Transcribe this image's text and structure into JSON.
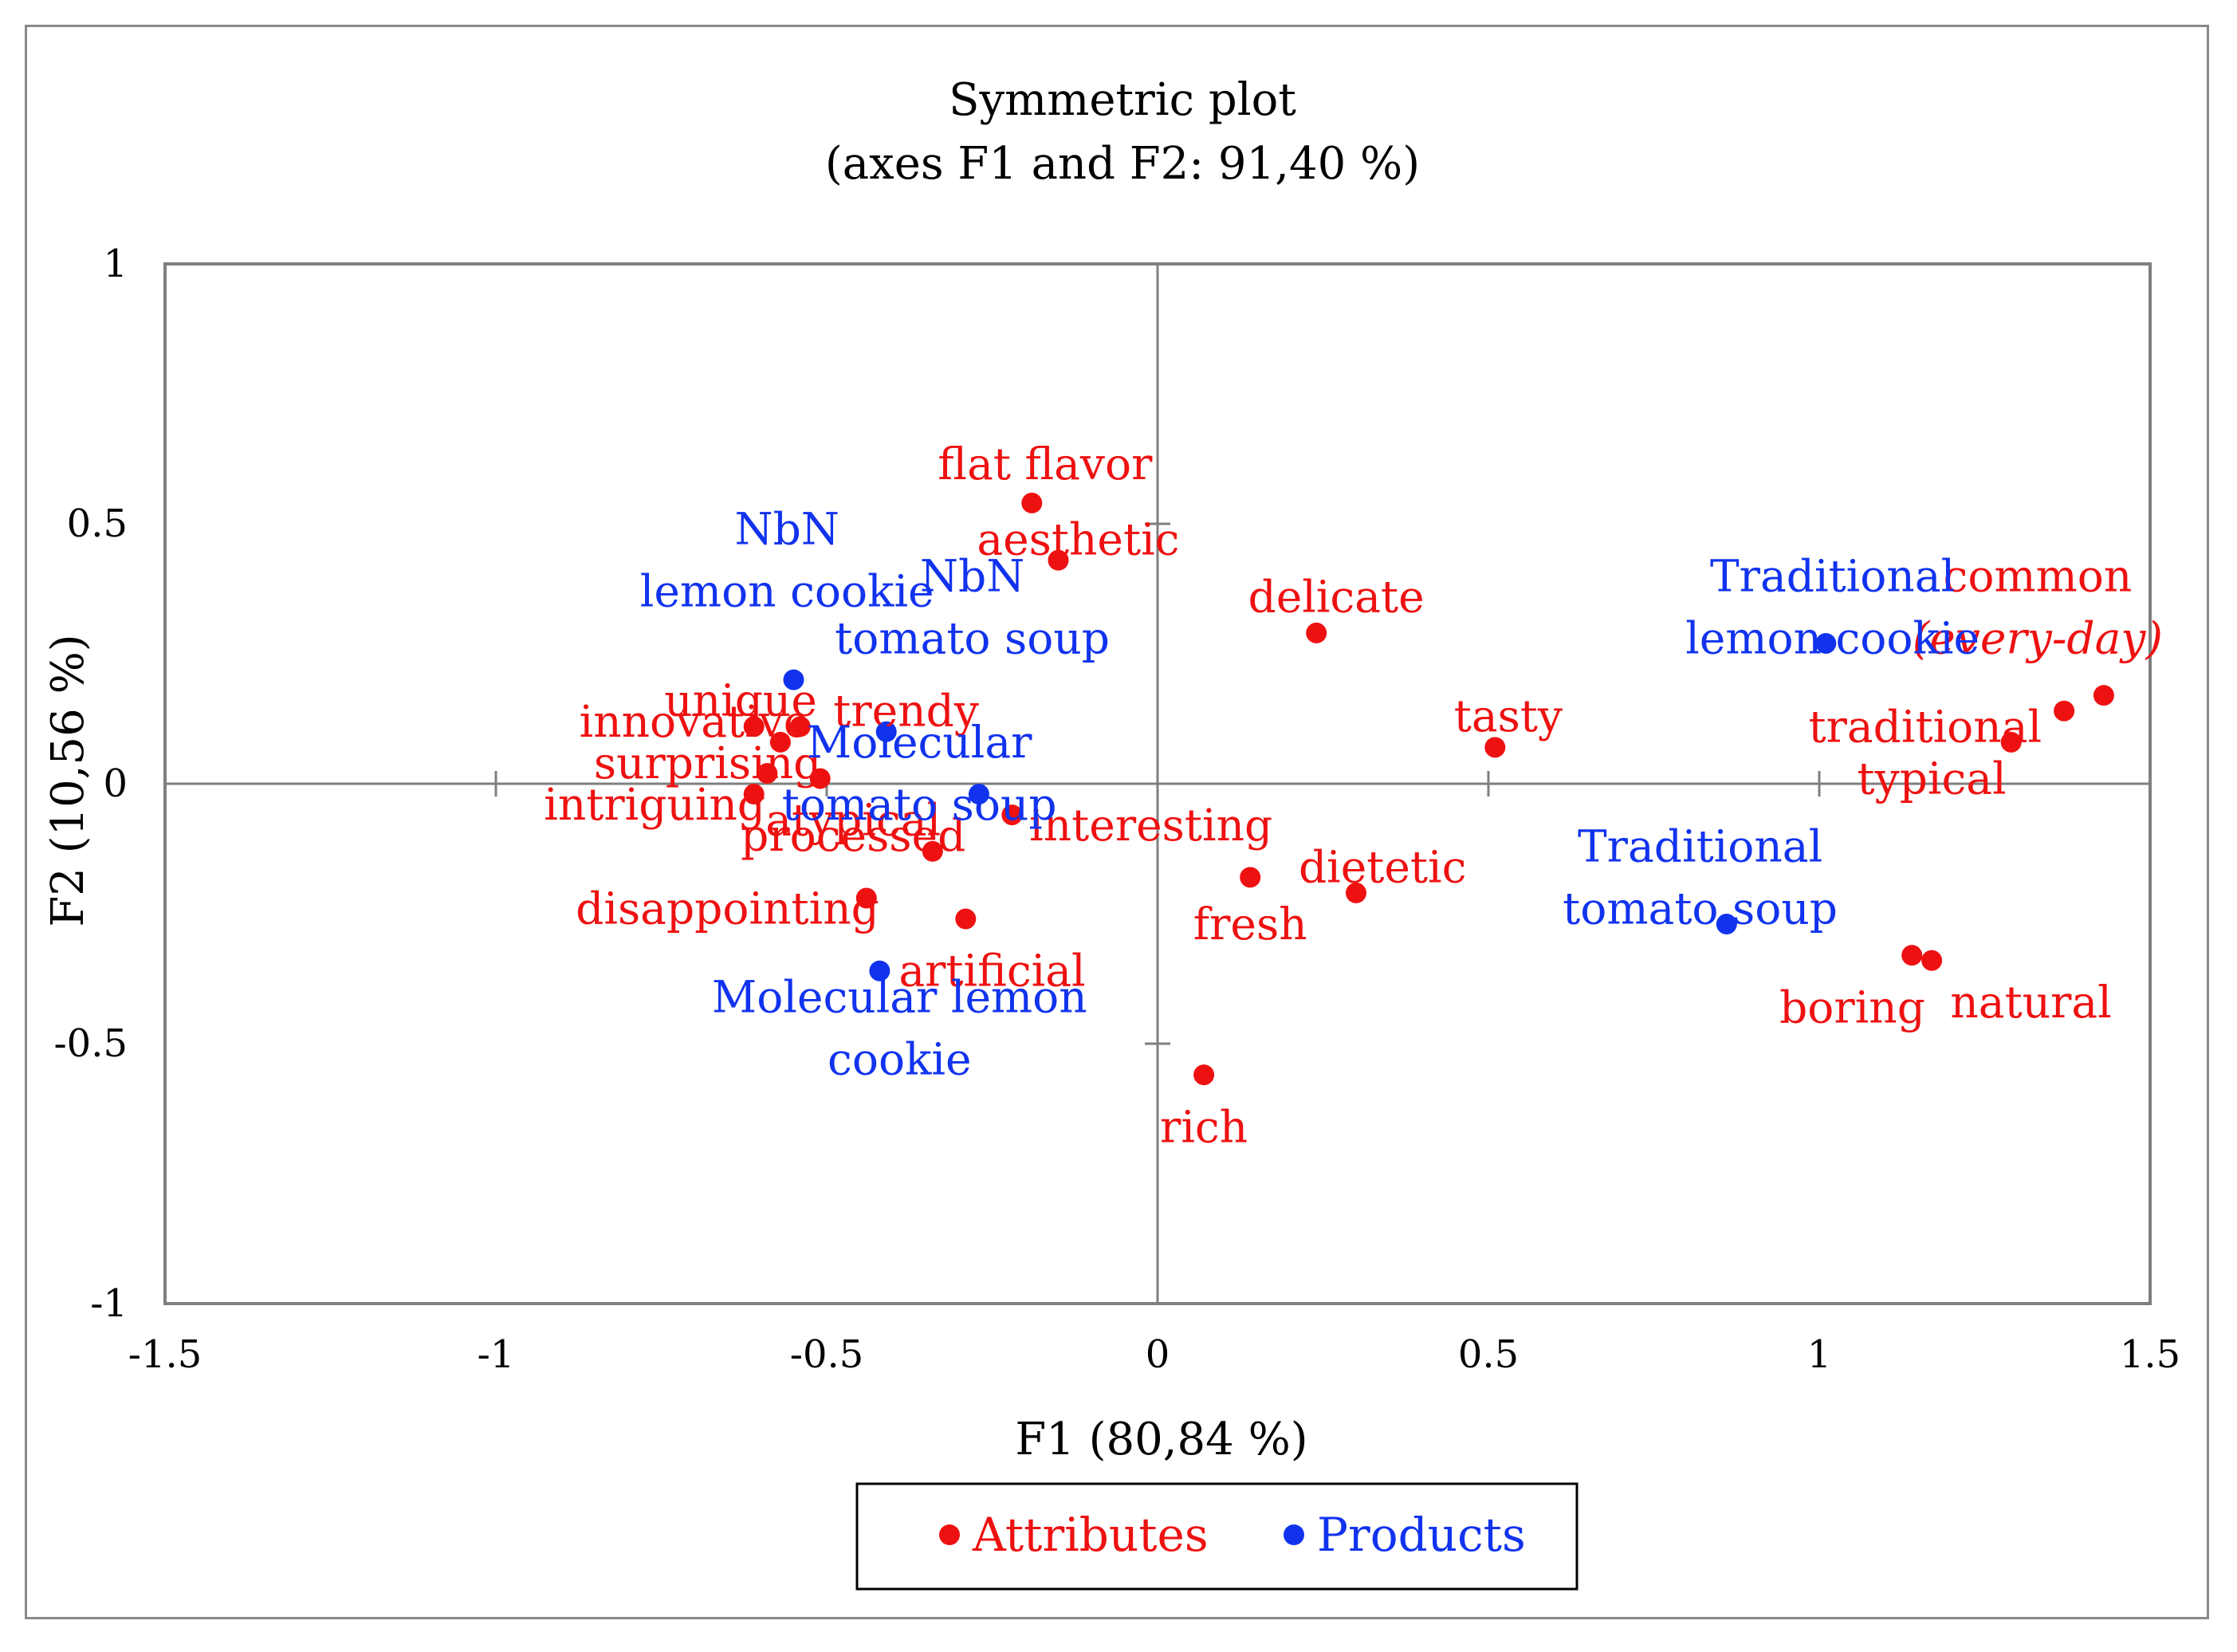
{
  "chart_data": {
    "type": "scatter",
    "title": "Symmetric plot",
    "subtitle": "(axes F1 and F2: 91,40 %)",
    "xlabel": "F1 (80,84 %)",
    "ylabel": "F2 (10,56 %)",
    "xlim": [
      -1.5,
      1.5
    ],
    "ylim": [
      -1,
      1
    ],
    "xticks": [
      -1.5,
      -1,
      -0.5,
      0,
      0.5,
      1,
      1.5
    ],
    "yticks": [
      -1,
      -0.5,
      0,
      0.5,
      1
    ],
    "xtick_labels": [
      "-1.5",
      "-1",
      "-0.5",
      "0",
      "0.5",
      "1",
      "1.5"
    ],
    "ytick_labels": [
      "-1",
      "-0.5",
      "0",
      "0.5",
      "1"
    ],
    "legend": {
      "position": "bottom-center",
      "entries": [
        "Attributes",
        "Products"
      ]
    },
    "colors": {
      "Attributes": "#ee1111",
      "Products": "#1133ee"
    },
    "series": [
      {
        "name": "Attributes",
        "points": [
          {
            "label": [
              "flat flavor"
            ],
            "x": -0.19,
            "y": 0.54,
            "label_dx": 0.02,
            "label_dy": 0.075,
            "anchor": "middle"
          },
          {
            "label": [
              "aesthetic"
            ],
            "x": -0.15,
            "y": 0.43,
            "label_dx": 0.03,
            "label_dy": 0.04,
            "anchor": "middle"
          },
          {
            "label": [
              "delicate"
            ],
            "x": 0.24,
            "y": 0.29,
            "label_dx": 0.03,
            "label_dy": 0.07,
            "anchor": "middle"
          },
          {
            "label": [
              "tasty"
            ],
            "x": 0.51,
            "y": 0.07,
            "label_dx": 0.02,
            "label_dy": 0.06,
            "anchor": "middle"
          },
          {
            "label": [
              "common",
              "(every-day)"
            ],
            "x": 1.43,
            "y": 0.17,
            "label_dx": -0.1,
            "label_dy": 0.17,
            "anchor": "middle",
            "italic_line": 1
          },
          {
            "label": [
              "traditional"
            ],
            "x": 1.37,
            "y": 0.14,
            "label_dx": -0.21,
            "label_dy": -0.03,
            "anchor": "middle"
          },
          {
            "label": [
              "typical"
            ],
            "x": 1.29,
            "y": 0.08,
            "label_dx": -0.12,
            "label_dy": -0.07,
            "anchor": "middle"
          },
          {
            "label": [
              "unique"
            ],
            "x": -0.61,
            "y": 0.11,
            "label_dx": -0.02,
            "label_dy": 0.05,
            "anchor": "middle"
          },
          {
            "label": [
              "trendy"
            ],
            "x": -0.54,
            "y": 0.11,
            "label_dx": 0.16,
            "label_dy": 0.03,
            "anchor": "middle"
          },
          {
            "label": [
              "innovative"
            ],
            "x": -0.57,
            "y": 0.08,
            "label_dx": -0.13,
            "label_dy": 0.04,
            "anchor": "middle"
          },
          {
            "label": [
              "surprising"
            ],
            "x": -0.59,
            "y": 0.02,
            "label_dx": -0.09,
            "label_dy": 0.02,
            "anchor": "middle"
          },
          {
            "label": [
              "atypical"
            ],
            "x": -0.51,
            "y": 0.01,
            "label_dx": 0.05,
            "label_dy": -0.08,
            "anchor": "middle"
          },
          {
            "label": [
              "intriguing"
            ],
            "x": -0.61,
            "y": -0.02,
            "label_dx": -0.15,
            "label_dy": -0.02,
            "anchor": "middle"
          },
          {
            "label": [
              "interesting"
            ],
            "x": -0.22,
            "y": -0.06,
            "label_dx": 0.21,
            "label_dy": -0.02,
            "anchor": "middle"
          },
          {
            "label": [
              "processed"
            ],
            "x": -0.34,
            "y": -0.13,
            "label_dx": -0.12,
            "label_dy": 0.03,
            "anchor": "middle"
          },
          {
            "label": [
              "disappointing"
            ],
            "x": -0.44,
            "y": -0.22,
            "label_dx": -0.21,
            "label_dy": -0.02,
            "anchor": "middle"
          },
          {
            "label": [
              "artificial"
            ],
            "x": -0.29,
            "y": -0.26,
            "label_dx": 0.04,
            "label_dy": -0.1,
            "anchor": "middle"
          },
          {
            "label": [
              "fresh"
            ],
            "x": 0.14,
            "y": -0.18,
            "label_dx": 0.0,
            "label_dy": -0.09,
            "anchor": "middle"
          },
          {
            "label": [
              "dietetic"
            ],
            "x": 0.3,
            "y": -0.21,
            "label_dx": 0.04,
            "label_dy": 0.05,
            "anchor": "middle"
          },
          {
            "label": [
              "rich"
            ],
            "x": 0.07,
            "y": -0.56,
            "label_dx": 0.0,
            "label_dy": -0.1,
            "anchor": "middle"
          },
          {
            "label": [
              "boring"
            ],
            "x": 1.14,
            "y": -0.33,
            "label_dx": -0.09,
            "label_dy": -0.1,
            "anchor": "middle"
          },
          {
            "label": [
              "natural"
            ],
            "x": 1.17,
            "y": -0.34,
            "label_dx": 0.15,
            "label_dy": -0.08,
            "anchor": "middle"
          }
        ]
      },
      {
        "name": "Products",
        "points": [
          {
            "label": [
              "NbN",
              "lemon cookie"
            ],
            "x": -0.55,
            "y": 0.2,
            "label_dx": -0.01,
            "label_dy": 0.23,
            "anchor": "middle"
          },
          {
            "label": [
              "NbN",
              "tomato soup"
            ],
            "x": -0.41,
            "y": 0.1,
            "label_dx": 0.13,
            "label_dy": 0.24,
            "anchor": "middle"
          },
          {
            "label": [
              "Molecular",
              "tomato soup"
            ],
            "x": -0.27,
            "y": -0.02,
            "label_dx": -0.09,
            "label_dy": 0.04,
            "anchor": "middle"
          },
          {
            "label": [
              "Molecular lemon",
              "cookie"
            ],
            "x": -0.42,
            "y": -0.36,
            "label_dx": 0.03,
            "label_dy": -0.11,
            "anchor": "middle"
          },
          {
            "label": [
              "Traditional",
              "lemon cookie"
            ],
            "x": 1.01,
            "y": 0.27,
            "label_dx": 0.01,
            "label_dy": 0.07,
            "anchor": "middle"
          },
          {
            "label": [
              "Traditional",
              "tomato soup"
            ],
            "x": 0.86,
            "y": -0.27,
            "label_dx": -0.04,
            "label_dy": 0.09,
            "anchor": "middle"
          }
        ]
      }
    ]
  }
}
